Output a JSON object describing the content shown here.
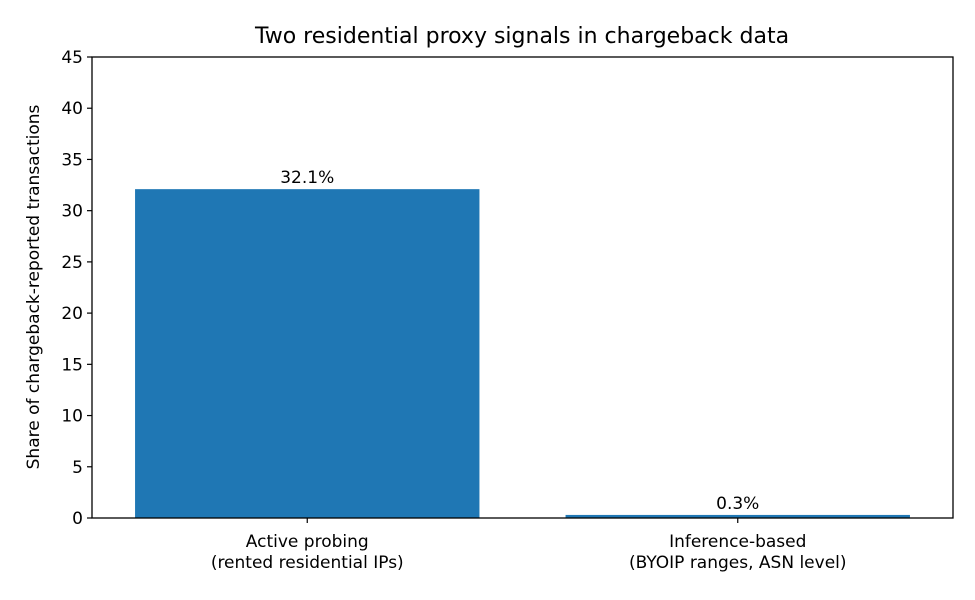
{
  "chart_data": {
    "type": "bar",
    "title": "Two residential proxy signals in chargeback data",
    "xlabel": "",
    "ylabel": "Share of chargeback-reported transactions",
    "ylim": [
      0,
      45
    ],
    "yticks": [
      0,
      5,
      10,
      15,
      20,
      25,
      30,
      35,
      40,
      45
    ],
    "grid": false,
    "legend": "none",
    "bar_color": "#1f77b4",
    "categories": [
      [
        "Active probing",
        "(rented residential IPs)"
      ],
      [
        "Inference-based",
        "(BYOIP ranges, ASN level)"
      ]
    ],
    "values": [
      32.1,
      0.3
    ],
    "data_labels": [
      "32.1%",
      "0.3%"
    ]
  }
}
